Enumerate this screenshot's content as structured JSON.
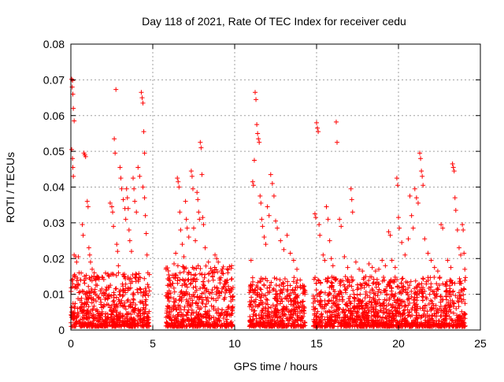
{
  "chart_data": {
    "type": "scatter",
    "title": "Day 118 of 2021, Rate Of TEC Index for receiver cedu",
    "xlabel": "GPS time / hours",
    "ylabel": "ROTI / TECUs",
    "xlim": [
      0,
      25
    ],
    "ylim": [
      0,
      0.08
    ],
    "x_ticks": [
      0,
      5,
      10,
      15,
      20,
      25
    ],
    "x_tick_labels": [
      "0",
      "5",
      "10",
      "15",
      "20",
      "25"
    ],
    "y_ticks": [
      0,
      0.01,
      0.02,
      0.03,
      0.04,
      0.05,
      0.06,
      0.07,
      0.08
    ],
    "y_tick_labels": [
      "0",
      "0.01",
      "0.02",
      "0.03",
      "0.04",
      "0.05",
      "0.06",
      "0.07",
      "0.08"
    ],
    "grid": true,
    "marker": "plus",
    "color": "#ff0000",
    "series": [
      {
        "values_note_free": true,
        "points": [
          [
            0.05,
            0.0702
          ],
          [
            0.1,
            0.0698
          ],
          [
            0.08,
            0.068
          ],
          [
            0.12,
            0.066
          ],
          [
            0.15,
            0.062
          ],
          [
            0.2,
            0.0585
          ],
          [
            0.05,
            0.0505
          ],
          [
            0.1,
            0.048
          ],
          [
            0.12,
            0.0455
          ],
          [
            0.15,
            0.043
          ],
          [
            0.2,
            0.021
          ],
          [
            0.3,
            0.0205
          ],
          [
            0.35,
            0.019
          ],
          [
            0.45,
            0.0205
          ],
          [
            0.5,
            0.016
          ],
          [
            0.6,
            0.014
          ],
          [
            0.8,
            0.0495
          ],
          [
            0.85,
            0.049
          ],
          [
            0.9,
            0.0485
          ],
          [
            0.7,
            0.0295
          ],
          [
            0.75,
            0.0265
          ],
          [
            1.0,
            0.036
          ],
          [
            1.05,
            0.0345
          ],
          [
            1.1,
            0.023
          ],
          [
            1.15,
            0.021
          ],
          [
            1.2,
            0.019
          ],
          [
            1.3,
            0.017
          ],
          [
            1.4,
            0.015
          ],
          [
            1.6,
            0.0125
          ],
          [
            1.8,
            0.011
          ],
          [
            2.0,
            0.0105
          ],
          [
            2.2,
            0.012
          ],
          [
            2.4,
            0.0355
          ],
          [
            2.5,
            0.0345
          ],
          [
            2.55,
            0.033
          ],
          [
            2.6,
            0.029
          ],
          [
            2.65,
            0.0535
          ],
          [
            2.7,
            0.0495
          ],
          [
            2.75,
            0.0673
          ],
          [
            2.8,
            0.024
          ],
          [
            2.85,
            0.022
          ],
          [
            2.9,
            0.018
          ],
          [
            3.0,
            0.0455
          ],
          [
            3.05,
            0.0425
          ],
          [
            3.1,
            0.0395
          ],
          [
            3.2,
            0.0365
          ],
          [
            3.3,
            0.034
          ],
          [
            3.35,
            0.031
          ],
          [
            3.4,
            0.0395
          ],
          [
            3.45,
            0.037
          ],
          [
            3.5,
            0.034
          ],
          [
            3.55,
            0.028
          ],
          [
            3.6,
            0.025
          ],
          [
            3.7,
            0.022
          ],
          [
            3.8,
            0.0425
          ],
          [
            3.85,
            0.0395
          ],
          [
            3.9,
            0.036
          ],
          [
            4.0,
            0.033
          ],
          [
            4.1,
            0.0455
          ],
          [
            4.2,
            0.043
          ],
          [
            4.3,
            0.0665
          ],
          [
            4.35,
            0.065
          ],
          [
            4.4,
            0.0635
          ],
          [
            4.45,
            0.0555
          ],
          [
            4.5,
            0.0495
          ],
          [
            4.4,
            0.04
          ],
          [
            4.5,
            0.037
          ],
          [
            4.55,
            0.032
          ],
          [
            4.6,
            0.027
          ],
          [
            4.65,
            0.021
          ],
          [
            4.7,
            0.016
          ],
          [
            4.75,
            0.012
          ],
          [
            5.9,
            0.0125
          ],
          [
            6.0,
            0.011
          ],
          [
            6.2,
            0.013
          ],
          [
            6.3,
            0.0185
          ],
          [
            6.4,
            0.0215
          ],
          [
            6.5,
            0.0425
          ],
          [
            6.55,
            0.0415
          ],
          [
            6.6,
            0.04
          ],
          [
            6.65,
            0.033
          ],
          [
            6.7,
            0.028
          ],
          [
            6.8,
            0.024
          ],
          [
            6.9,
            0.0205
          ],
          [
            7.0,
            0.036
          ],
          [
            7.05,
            0.031
          ],
          [
            7.1,
            0.0285
          ],
          [
            7.2,
            0.026
          ],
          [
            7.35,
            0.0445
          ],
          [
            7.4,
            0.043
          ],
          [
            7.45,
            0.0395
          ],
          [
            7.5,
            0.0285
          ],
          [
            7.6,
            0.025
          ],
          [
            7.7,
            0.0385
          ],
          [
            7.75,
            0.0365
          ],
          [
            7.8,
            0.033
          ],
          [
            7.85,
            0.031
          ],
          [
            7.9,
            0.0525
          ],
          [
            7.95,
            0.051
          ],
          [
            8.0,
            0.0435
          ],
          [
            8.05,
            0.0315
          ],
          [
            8.1,
            0.0295
          ],
          [
            8.2,
            0.023
          ],
          [
            8.4,
            0.019
          ],
          [
            8.6,
            0.0165
          ],
          [
            8.8,
            0.021
          ],
          [
            8.9,
            0.02
          ],
          [
            9.0,
            0.019
          ],
          [
            9.1,
            0.014
          ],
          [
            9.3,
            0.012
          ],
          [
            9.5,
            0.011
          ],
          [
            9.7,
            0.0105
          ],
          [
            9.9,
            0.0095
          ],
          [
            10.9,
            0.0105
          ],
          [
            11.0,
            0.0195
          ],
          [
            11.1,
            0.0415
          ],
          [
            11.15,
            0.0405
          ],
          [
            11.2,
            0.0475
          ],
          [
            11.25,
            0.0665
          ],
          [
            11.3,
            0.0645
          ],
          [
            11.35,
            0.0575
          ],
          [
            11.4,
            0.055
          ],
          [
            11.45,
            0.0535
          ],
          [
            11.5,
            0.0525
          ],
          [
            11.55,
            0.0375
          ],
          [
            11.6,
            0.0355
          ],
          [
            11.65,
            0.031
          ],
          [
            11.7,
            0.029
          ],
          [
            11.8,
            0.026
          ],
          [
            11.9,
            0.024
          ],
          [
            12.0,
            0.0345
          ],
          [
            12.1,
            0.032
          ],
          [
            12.2,
            0.0435
          ],
          [
            12.3,
            0.041
          ],
          [
            12.4,
            0.0375
          ],
          [
            12.5,
            0.0305
          ],
          [
            12.6,
            0.0285
          ],
          [
            12.8,
            0.025
          ],
          [
            13.0,
            0.0225
          ],
          [
            13.2,
            0.0265
          ],
          [
            13.4,
            0.0215
          ],
          [
            13.6,
            0.0195
          ],
          [
            13.8,
            0.017
          ],
          [
            14.0,
            0.014
          ],
          [
            14.2,
            0.012
          ],
          [
            14.3,
            0.0105
          ],
          [
            14.8,
            0.0095
          ],
          [
            14.9,
            0.0325
          ],
          [
            14.95,
            0.0315
          ],
          [
            15.0,
            0.058
          ],
          [
            15.05,
            0.0565
          ],
          [
            15.1,
            0.0555
          ],
          [
            15.15,
            0.0295
          ],
          [
            15.2,
            0.0265
          ],
          [
            15.4,
            0.021
          ],
          [
            15.5,
            0.0195
          ],
          [
            15.6,
            0.0345
          ],
          [
            15.7,
            0.031
          ],
          [
            15.8,
            0.025
          ],
          [
            15.9,
            0.02
          ],
          [
            16.0,
            0.018
          ],
          [
            16.2,
            0.0582
          ],
          [
            16.25,
            0.0525
          ],
          [
            16.4,
            0.031
          ],
          [
            16.5,
            0.029
          ],
          [
            16.7,
            0.0205
          ],
          [
            16.9,
            0.0175
          ],
          [
            17.1,
            0.0395
          ],
          [
            17.15,
            0.0365
          ],
          [
            17.2,
            0.033
          ],
          [
            17.4,
            0.019
          ],
          [
            17.6,
            0.017
          ],
          [
            17.8,
            0.0165
          ],
          [
            18.0,
            0.015
          ],
          [
            18.2,
            0.0185
          ],
          [
            18.4,
            0.0175
          ],
          [
            18.6,
            0.0165
          ],
          [
            18.8,
            0.017
          ],
          [
            19.0,
            0.0195
          ],
          [
            19.2,
            0.018
          ],
          [
            19.4,
            0.0275
          ],
          [
            19.5,
            0.0265
          ],
          [
            19.6,
            0.0195
          ],
          [
            19.8,
            0.0175
          ],
          [
            19.9,
            0.0425
          ],
          [
            19.95,
            0.0405
          ],
          [
            20.0,
            0.0315
          ],
          [
            20.05,
            0.0285
          ],
          [
            20.2,
            0.0245
          ],
          [
            20.4,
            0.021
          ],
          [
            20.6,
            0.0255
          ],
          [
            20.7,
            0.0375
          ],
          [
            20.8,
            0.032
          ],
          [
            20.9,
            0.0285
          ],
          [
            21.0,
            0.0395
          ],
          [
            21.1,
            0.037
          ],
          [
            21.2,
            0.0355
          ],
          [
            21.3,
            0.0495
          ],
          [
            21.35,
            0.048
          ],
          [
            21.4,
            0.0445
          ],
          [
            21.45,
            0.043
          ],
          [
            21.5,
            0.0405
          ],
          [
            21.6,
            0.0255
          ],
          [
            21.8,
            0.0215
          ],
          [
            22.0,
            0.0195
          ],
          [
            22.2,
            0.0175
          ],
          [
            22.4,
            0.0165
          ],
          [
            22.6,
            0.0295
          ],
          [
            22.7,
            0.0285
          ],
          [
            23.0,
            0.0195
          ],
          [
            23.2,
            0.0175
          ],
          [
            23.3,
            0.0465
          ],
          [
            23.35,
            0.0455
          ],
          [
            23.4,
            0.0445
          ],
          [
            23.45,
            0.037
          ],
          [
            23.5,
            0.0335
          ],
          [
            23.6,
            0.028
          ],
          [
            23.7,
            0.023
          ],
          [
            23.8,
            0.021
          ],
          [
            23.9,
            0.0295
          ],
          [
            23.95,
            0.028
          ],
          [
            24.0,
            0.0215
          ],
          [
            24.05,
            0.017
          ]
        ]
      }
    ],
    "density_segments": [
      {
        "x_start": 0.0,
        "x_end": 4.8,
        "y_min": 0.001,
        "y_max": 0.016
      },
      {
        "x_start": 5.8,
        "x_end": 9.9,
        "y_min": 0.001,
        "y_max": 0.018
      },
      {
        "x_start": 10.9,
        "x_end": 14.3,
        "y_min": 0.001,
        "y_max": 0.015
      },
      {
        "x_start": 14.8,
        "x_end": 24.1,
        "y_min": 0.001,
        "y_max": 0.015
      }
    ]
  }
}
